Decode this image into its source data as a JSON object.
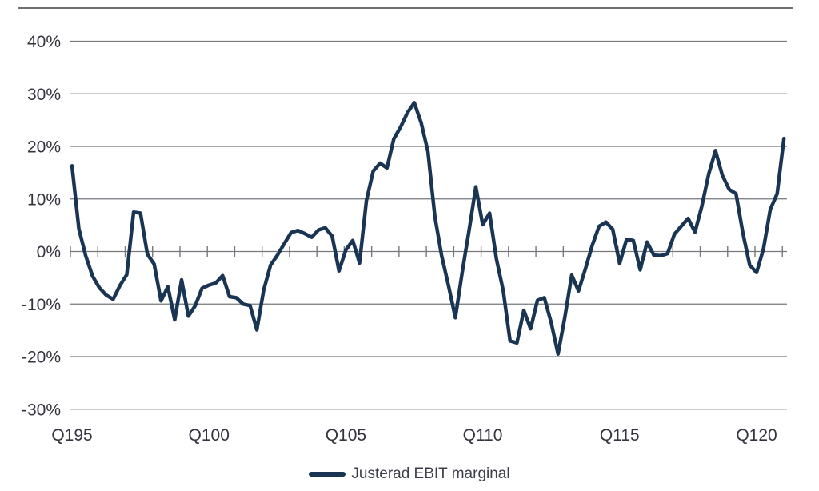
{
  "chart_data": {
    "type": "line",
    "title": "",
    "xlabel": "",
    "ylabel": "",
    "x_start": "Q1 1995",
    "x_end": "Q1 2021",
    "x_frequency": "quarterly",
    "x_tick_labels": [
      "Q195",
      "Q100",
      "Q105",
      "Q110",
      "Q115",
      "Q120"
    ],
    "x_tick_interval_years": 5,
    "y_ticks": [
      40,
      30,
      20,
      10,
      0,
      -10,
      -20,
      -30
    ],
    "y_tick_labels": [
      "40%",
      "30%",
      "20%",
      "10%",
      "0%",
      "-10%",
      "-20%",
      "-30%"
    ],
    "ylim": [
      -33,
      46
    ],
    "grid": "horizontal",
    "zero_axis_yearly_ticks": true,
    "legend_position": "bottom-center",
    "series": [
      {
        "name": "Justerad EBIT marginal",
        "color": "#1a3553",
        "values": [
          16.3,
          4.3,
          -0.8,
          -4.7,
          -6.9,
          -8.3,
          -9.1,
          -6.5,
          -4.4,
          7.5,
          7.3,
          -0.5,
          -2.4,
          -9.4,
          -6.7,
          -13.0,
          -5.4,
          -12.3,
          -10.3,
          -7.0,
          -6.4,
          -6.0,
          -4.6,
          -8.6,
          -8.8,
          -10.0,
          -10.3,
          -14.9,
          -7.3,
          -2.6,
          -0.7,
          1.5,
          3.6,
          4.0,
          3.4,
          2.7,
          4.1,
          4.5,
          2.9,
          -3.7,
          0.3,
          2.1,
          -2.2,
          9.7,
          15.3,
          16.8,
          15.9,
          21.4,
          23.7,
          26.4,
          28.3,
          24.5,
          19.0,
          6.7,
          -0.8,
          -6.5,
          -12.6,
          -4.0,
          4.0,
          12.3,
          5.1,
          7.3,
          -1.4,
          -7.5,
          -17.0,
          -17.4,
          -11.2,
          -14.7,
          -9.3,
          -8.8,
          -13.5,
          -19.5,
          -12.5,
          -4.5,
          -7.5,
          -3.3,
          1.2,
          4.8,
          5.6,
          4.2,
          -2.3,
          2.3,
          2.1,
          -3.5,
          1.8,
          -0.7,
          -0.8,
          -0.4,
          3.3,
          4.8,
          6.3,
          3.7,
          8.6,
          14.7,
          19.2,
          14.5,
          11.8,
          11.0,
          3.5,
          -2.6,
          -4.0,
          0.5,
          8.0,
          11.0,
          21.5
        ]
      }
    ]
  },
  "legend": {
    "label": "Justerad EBIT marginal"
  },
  "colors": {
    "line": "#1a3553",
    "grid": "#75787d",
    "axis_text": "#33343e",
    "top_rule": "#6d7277",
    "background": "#ffffff"
  }
}
